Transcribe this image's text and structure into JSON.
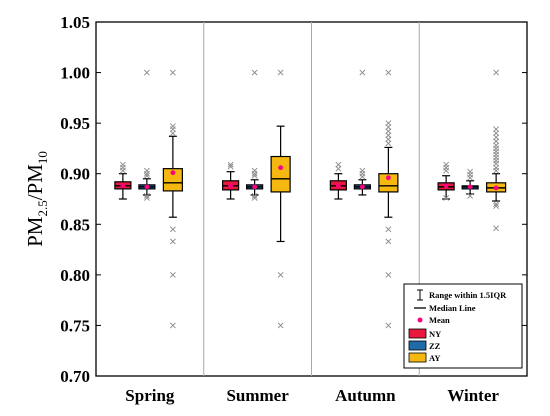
{
  "chart_data": {
    "type": "box",
    "ylabel": {
      "base": "PM",
      "sub1": "2.5",
      "mid": "/PM",
      "sub2": "10"
    },
    "ylim": [
      0.7,
      1.05
    ],
    "yticks": [
      0.7,
      0.75,
      0.8,
      0.85,
      0.9,
      0.95,
      1.0,
      1.05
    ],
    "ytick_labels": [
      "0.70",
      "0.75",
      "0.80",
      "0.85",
      "0.90",
      "0.95",
      "1.00",
      "1.05"
    ],
    "categories": [
      "Spring",
      "Summer",
      "Autumn",
      "Winter"
    ],
    "grid": false,
    "legend_position": "bottom-right",
    "legend": {
      "range_label": "Range within 1.5IQR",
      "median_label": "Median Line",
      "mean_label": "Mean"
    },
    "mean_color": "#ff0080",
    "outlier_color": "#888888",
    "series": [
      {
        "name": "NY",
        "color": "#e8193c",
        "boxes": [
          {
            "q1": 0.885,
            "median": 0.888,
            "q3": 0.892,
            "whisker_low": 0.875,
            "whisker_high": 0.9,
            "mean": 0.888,
            "outliers": [
              0.903,
              0.906,
              0.909
            ]
          },
          {
            "q1": 0.884,
            "median": 0.888,
            "q3": 0.893,
            "whisker_low": 0.875,
            "whisker_high": 0.902,
            "mean": 0.888,
            "outliers": [
              0.907,
              0.909
            ]
          },
          {
            "q1": 0.884,
            "median": 0.888,
            "q3": 0.893,
            "whisker_low": 0.875,
            "whisker_high": 0.9,
            "mean": 0.888,
            "outliers": [
              0.905,
              0.909
            ]
          },
          {
            "q1": 0.884,
            "median": 0.887,
            "q3": 0.891,
            "whisker_low": 0.875,
            "whisker_high": 0.898,
            "mean": 0.888,
            "outliers": [
              0.876,
              0.903,
              0.906,
              0.909
            ]
          }
        ]
      },
      {
        "name": "ZZ",
        "color": "#1f6aa8",
        "boxes": [
          {
            "q1": 0.885,
            "median": 0.887,
            "q3": 0.889,
            "whisker_low": 0.879,
            "whisker_high": 0.895,
            "mean": 0.887,
            "outliers": [
              0.876,
              0.878,
              0.898,
              0.9,
              0.903,
              1.0
            ]
          },
          {
            "q1": 0.885,
            "median": 0.887,
            "q3": 0.889,
            "whisker_low": 0.879,
            "whisker_high": 0.894,
            "mean": 0.887,
            "outliers": [
              0.876,
              0.878,
              0.898,
              0.9,
              0.903,
              1.0
            ]
          },
          {
            "q1": 0.885,
            "median": 0.887,
            "q3": 0.889,
            "whisker_low": 0.879,
            "whisker_high": 0.894,
            "mean": 0.887,
            "outliers": [
              0.897,
              0.9,
              0.903,
              1.0
            ]
          },
          {
            "q1": 0.885,
            "median": 0.887,
            "q3": 0.888,
            "whisker_low": 0.88,
            "whisker_high": 0.893,
            "mean": 0.887,
            "outliers": [
              0.878,
              0.896,
              0.899,
              0.902
            ]
          }
        ]
      },
      {
        "name": "AY",
        "color": "#f5b810",
        "boxes": [
          {
            "q1": 0.883,
            "median": 0.891,
            "q3": 0.905,
            "whisker_low": 0.857,
            "whisker_high": 0.937,
            "mean": 0.901,
            "outliers": [
              0.75,
              0.8,
              0.833,
              0.845,
              0.94,
              0.944,
              0.947,
              1.0
            ]
          },
          {
            "q1": 0.882,
            "median": 0.895,
            "q3": 0.917,
            "whisker_low": 0.833,
            "whisker_high": 0.947,
            "mean": 0.906,
            "outliers": [
              0.75,
              0.8,
              1.0
            ]
          },
          {
            "q1": 0.882,
            "median": 0.888,
            "q3": 0.9,
            "whisker_low": 0.857,
            "whisker_high": 0.926,
            "mean": 0.896,
            "outliers": [
              0.75,
              0.8,
              0.833,
              0.845,
              0.93,
              0.934,
              0.938,
              0.942,
              0.946,
              0.95,
              1.0
            ]
          },
          {
            "q1": 0.882,
            "median": 0.886,
            "q3": 0.891,
            "whisker_low": 0.873,
            "whisker_high": 0.9,
            "mean": 0.886,
            "outliers": [
              0.846,
              0.868,
              0.87,
              0.903,
              0.906,
              0.91,
              0.913,
              0.916,
              0.919,
              0.922,
              0.925,
              0.928,
              0.932,
              0.936,
              0.94,
              0.944,
              1.0
            ]
          }
        ]
      }
    ]
  }
}
